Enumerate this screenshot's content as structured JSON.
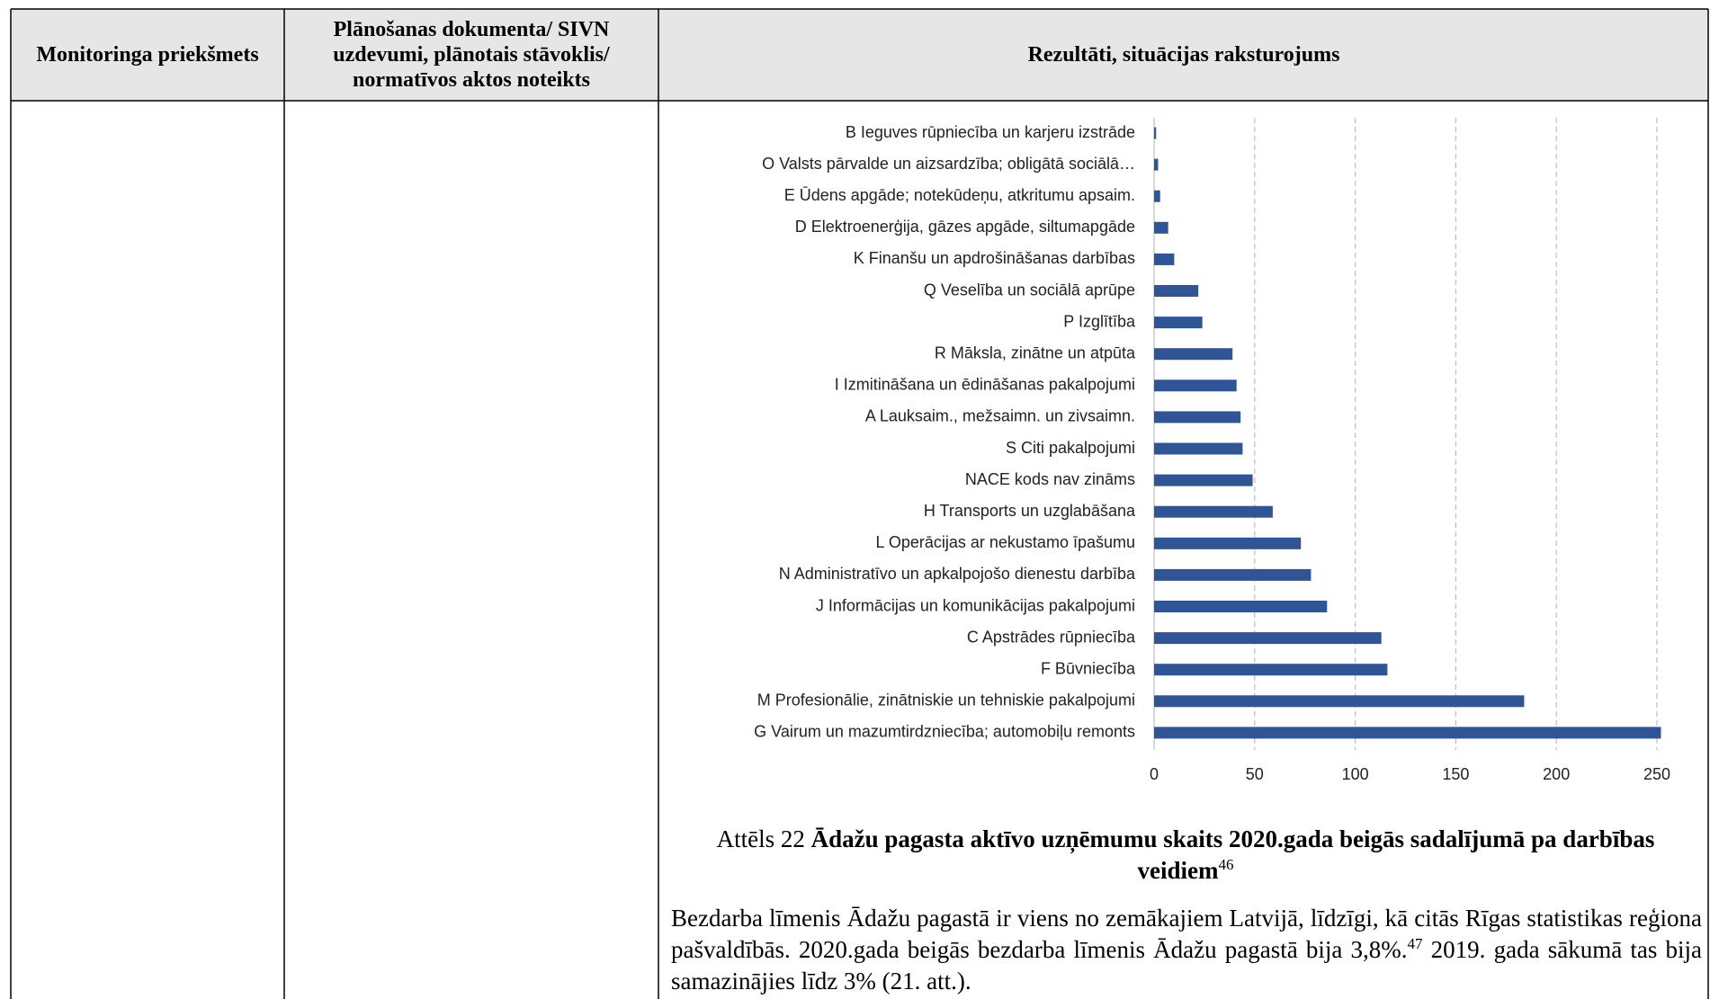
{
  "table": {
    "headers": [
      "Monitoringa priekšmets",
      "Plānošanas dokumenta/ SIVN uzdevumi, plānotais stāvoklis/ normatīvos aktos noteikts",
      "Rezultāti, situācijas raksturojums"
    ]
  },
  "chart_data": {
    "type": "barh",
    "categories": [
      "B Ieguves rūpniecība un karjeru izstrāde",
      "O Valsts pārvalde un aizsardzība; obligātā sociālā…",
      "E Ūdens apgāde; notekūdeņu, atkritumu apsaim.",
      "D Elektroenerģija, gāzes apgāde, siltumapgāde",
      "K Finanšu un apdrošināšanas darbības",
      "Q Veselība un sociālā aprūpe",
      "P Izglītība",
      "R Māksla, zinātne un atpūta",
      "I Izmitināšana un ēdināšanas pakalpojumi",
      "A Lauksaim., mežsaimn. un zivsaimn.",
      "S Citi pakalpojumi",
      "NACE kods nav zināms",
      "H Transports un uzglabāšana",
      "L Operācijas ar nekustamo īpašumu",
      "N Administratīvo un apkalpojošo dienestu darbība",
      "J Informācijas un komunikācijas pakalpojumi",
      "C Apstrādes rūpniecība",
      "F Būvniecība",
      "M Profesionālie, zinātniskie un tehniskie pakalpojumi",
      "G Vairum un mazumtirdzniecība; automobiļu remonts"
    ],
    "values": [
      1,
      2,
      3,
      7,
      10,
      22,
      24,
      39,
      41,
      43,
      44,
      49,
      59,
      73,
      78,
      86,
      113,
      116,
      184,
      252
    ],
    "color": "#2f5597",
    "xlim": [
      0,
      250
    ],
    "xticks": [
      0,
      50,
      100,
      150,
      200,
      250
    ],
    "grid": true
  },
  "caption": {
    "prefix": "Attēls 22",
    "title": "Ādažu pagasta aktīvo uzņēmumu skaits 2020.gada beigās sadalījumā pa darbības veidiem",
    "footnote": "46"
  },
  "paragraph": {
    "text1": "Bezdarba līmenis Ādažu pagastā ir viens no zemākajiem Latvijā, līdzīgi, kā citās Rīgas statistikas reģiona pašvaldībās. 2020.gada beigās bezdarba līmenis Ādažu pagastā bija 3,8%.",
    "footnote": "47",
    "text2": " 2019. gada sākumā tas bija samazinājies līdz 3% (21. att.)."
  }
}
